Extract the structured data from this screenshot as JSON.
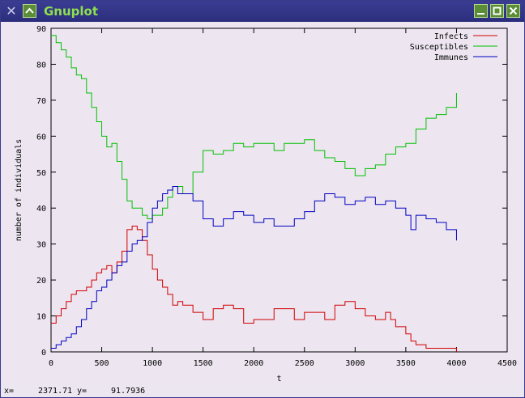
{
  "window": {
    "title": "Gnuplot",
    "icons": [
      "close-x-icon",
      "menu-chevron-icon",
      "minimize-icon",
      "maximize-icon",
      "close-icon"
    ]
  },
  "status": {
    "x_label": "x=",
    "x_value": "2371.71",
    "y_label": "y=",
    "y_value": "91.7936"
  },
  "chart_data": {
    "type": "line",
    "xlabel": "t",
    "ylabel": "number of individuals",
    "xlim": [
      0,
      4500
    ],
    "ylim": [
      0,
      90
    ],
    "xticks": [
      0,
      500,
      1000,
      1500,
      2000,
      2500,
      3000,
      3500,
      4000,
      4500
    ],
    "yticks": [
      0,
      10,
      20,
      30,
      40,
      50,
      60,
      70,
      80,
      90
    ],
    "legend_position": "top-right",
    "series": [
      {
        "name": "Infects",
        "color": "#d00000",
        "x": [
          0,
          50,
          100,
          150,
          200,
          250,
          300,
          350,
          400,
          450,
          500,
          550,
          600,
          650,
          700,
          750,
          800,
          850,
          900,
          950,
          1000,
          1050,
          1100,
          1150,
          1200,
          1250,
          1300,
          1400,
          1500,
          1600,
          1700,
          1800,
          1900,
          2000,
          2100,
          2200,
          2300,
          2400,
          2500,
          2600,
          2700,
          2800,
          2900,
          3000,
          3100,
          3200,
          3300,
          3350,
          3400,
          3450,
          3500,
          3550,
          3600,
          3700,
          3800,
          3900,
          4000
        ],
        "y": [
          8,
          10,
          12,
          14,
          16,
          17,
          17,
          18,
          20,
          22,
          23,
          24,
          22,
          25,
          28,
          34,
          35,
          34,
          31,
          27,
          23,
          20,
          18,
          16,
          13,
          14,
          13,
          11,
          9,
          12,
          13,
          12,
          8,
          9,
          9,
          12,
          12,
          9,
          11,
          11,
          9,
          13,
          14,
          12,
          10,
          9,
          11,
          9,
          7,
          7,
          5,
          3,
          2,
          1,
          1,
          1,
          0
        ]
      },
      {
        "name": "Susceptibles",
        "color": "#00c000",
        "x": [
          0,
          50,
          100,
          150,
          200,
          250,
          300,
          350,
          400,
          450,
          500,
          550,
          600,
          650,
          700,
          750,
          800,
          850,
          900,
          950,
          1000,
          1050,
          1100,
          1150,
          1200,
          1250,
          1300,
          1400,
          1500,
          1600,
          1700,
          1800,
          1900,
          2000,
          2100,
          2200,
          2300,
          2400,
          2500,
          2600,
          2700,
          2800,
          2900,
          3000,
          3100,
          3200,
          3300,
          3400,
          3500,
          3600,
          3700,
          3800,
          3900,
          4000
        ],
        "y": [
          88,
          86,
          84,
          82,
          79,
          77,
          76,
          72,
          68,
          64,
          60,
          57,
          58,
          53,
          48,
          42,
          40,
          40,
          38,
          37,
          38,
          38,
          40,
          43,
          46,
          46,
          44,
          50,
          56,
          55,
          56,
          58,
          57,
          58,
          58,
          56,
          58,
          58,
          59,
          56,
          54,
          53,
          51,
          49,
          51,
          52,
          55,
          57,
          58,
          62,
          65,
          66,
          68,
          72
        ]
      },
      {
        "name": "Immunes",
        "color": "#0000c0",
        "x": [
          0,
          50,
          100,
          150,
          200,
          250,
          300,
          350,
          400,
          450,
          500,
          550,
          600,
          650,
          700,
          750,
          800,
          850,
          900,
          950,
          1000,
          1050,
          1100,
          1150,
          1200,
          1250,
          1300,
          1400,
          1500,
          1600,
          1700,
          1800,
          1900,
          2000,
          2100,
          2200,
          2300,
          2400,
          2500,
          2600,
          2700,
          2800,
          2900,
          3000,
          3100,
          3200,
          3300,
          3400,
          3500,
          3550,
          3600,
          3700,
          3800,
          3900,
          4000
        ],
        "y": [
          1,
          2,
          3,
          4,
          5,
          7,
          9,
          12,
          14,
          17,
          18,
          20,
          22,
          24,
          25,
          28,
          30,
          31,
          32,
          36,
          40,
          42,
          44,
          45,
          46,
          44,
          44,
          42,
          37,
          35,
          37,
          39,
          38,
          36,
          37,
          35,
          35,
          37,
          39,
          42,
          44,
          43,
          41,
          42,
          43,
          41,
          42,
          40,
          38,
          34,
          38,
          37,
          36,
          34,
          31
        ]
      }
    ]
  }
}
